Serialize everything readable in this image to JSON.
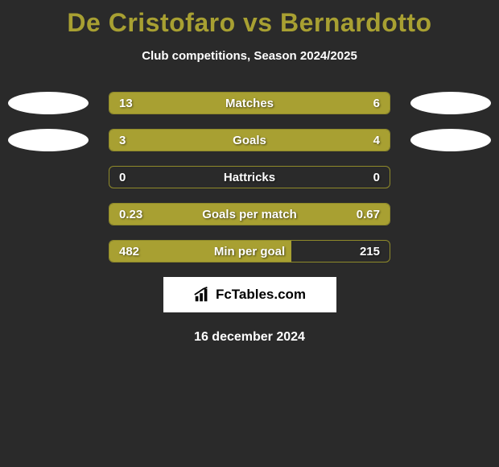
{
  "header": {
    "title": "De Cristofaro vs Bernardotto",
    "subtitle": "Club competitions, Season 2024/2025"
  },
  "chart": {
    "type": "comparison-bars",
    "bar_color": "#a8a032",
    "border_color": "#8f8a2a",
    "background_color": "#2a2a2a",
    "text_color": "#ffffff",
    "title_color": "#a8a032",
    "rows": [
      {
        "label": "Matches",
        "left_value": "13",
        "right_value": "6",
        "left_pct": 65,
        "right_pct": 35,
        "show_left_avatar": true,
        "show_right_avatar": true
      },
      {
        "label": "Goals",
        "left_value": "3",
        "right_value": "4",
        "left_pct": 40,
        "right_pct": 60,
        "show_left_avatar": true,
        "show_right_avatar": true
      },
      {
        "label": "Hattricks",
        "left_value": "0",
        "right_value": "0",
        "left_pct": 0,
        "right_pct": 0,
        "show_left_avatar": false,
        "show_right_avatar": false
      },
      {
        "label": "Goals per match",
        "left_value": "0.23",
        "right_value": "0.67",
        "left_pct": 0,
        "right_pct": 100,
        "show_left_avatar": false,
        "show_right_avatar": false
      },
      {
        "label": "Min per goal",
        "left_value": "482",
        "right_value": "215",
        "left_pct": 65,
        "right_pct": 0,
        "show_left_avatar": false,
        "show_right_avatar": false
      }
    ]
  },
  "footer": {
    "brand": "FcTables.com",
    "date": "16 december 2024"
  }
}
